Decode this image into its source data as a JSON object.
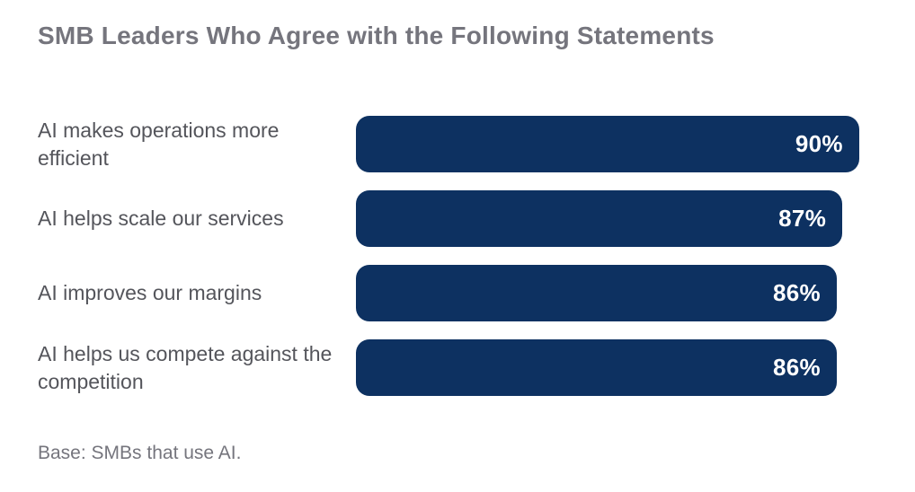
{
  "title": "SMB Leaders Who Agree with the Following Statements",
  "footnote": "Base: SMBs that use AI.",
  "colors": {
    "bar": "#0D3161",
    "title_text": "#75757D",
    "category_text": "#54555B",
    "value_text": "#FFFFFF",
    "background": "#FFFFFF"
  },
  "chart_data": {
    "type": "bar",
    "orientation": "horizontal",
    "title": "SMB Leaders Who Agree with the Following Statements",
    "categories": [
      "AI makes operations more efficient",
      "AI helps scale our services",
      "AI improves our margins",
      "AI helps us compete against the competition"
    ],
    "values": [
      90,
      87,
      86,
      86
    ],
    "value_labels": [
      "90%",
      "87%",
      "86%",
      "86%"
    ],
    "xlabel": "",
    "ylabel": "",
    "xlim": [
      0,
      100
    ],
    "grid": false,
    "legend": false,
    "value_label_position": "inside-end",
    "annotation": "Base: SMBs that use AI."
  }
}
